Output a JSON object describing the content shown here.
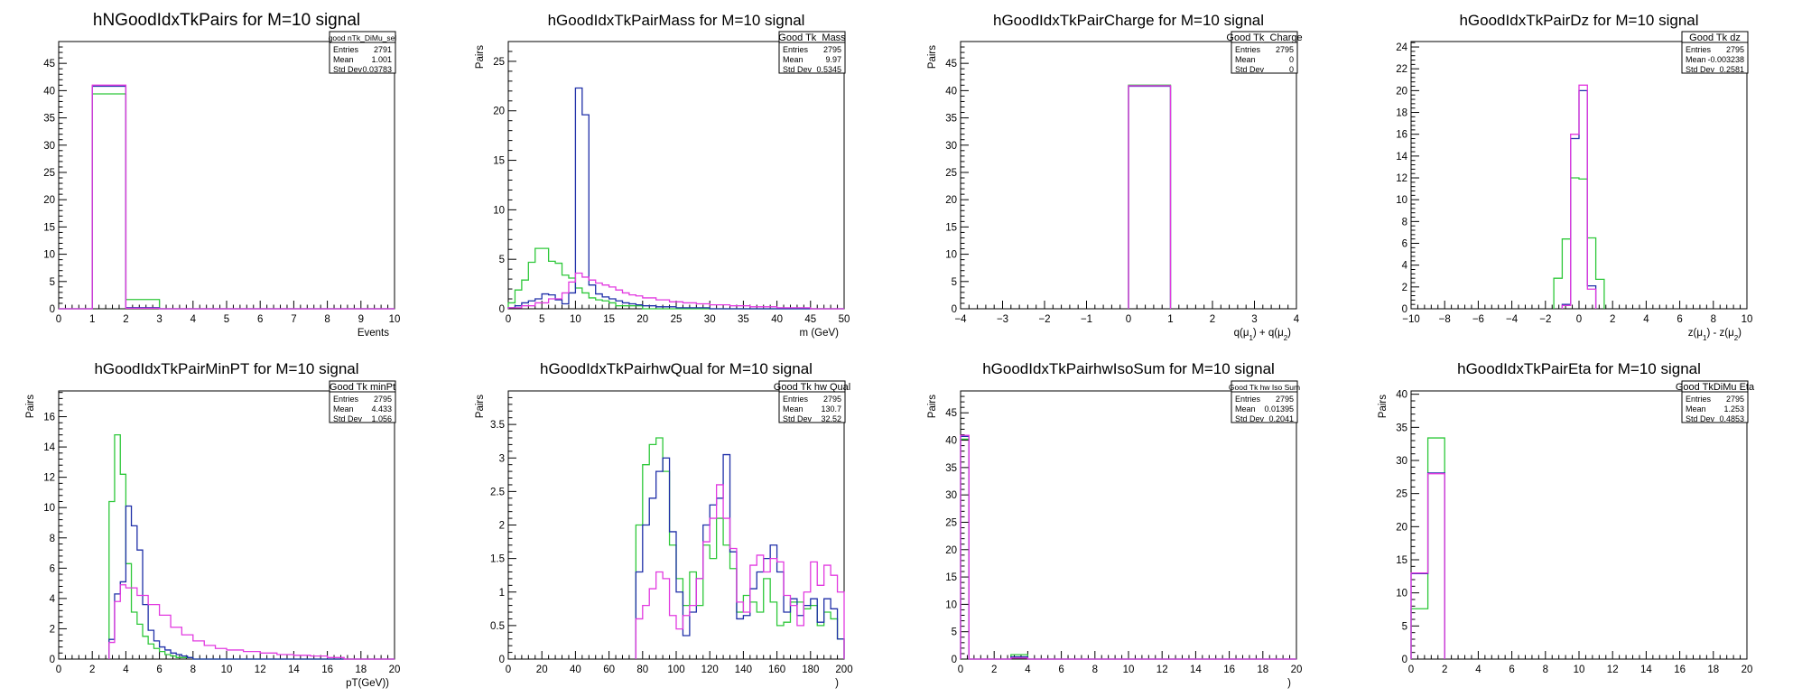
{
  "colors": {
    "blue": "#1f2fa8",
    "magenta": "#e23ae0",
    "green": "#2ec83a",
    "frame": "#000000"
  },
  "chart_data": [
    {
      "type": "histogram",
      "title": "hNGoodIdxTkPairs for M=10 signal",
      "xlabel": "Events",
      "ylabel": "",
      "xlim": [
        0,
        10
      ],
      "ylim": [
        0,
        49
      ],
      "xticks": [
        0,
        1,
        2,
        3,
        4,
        5,
        6,
        7,
        8,
        9,
        10
      ],
      "yticks": [
        0,
        5,
        10,
        15,
        20,
        25,
        30,
        35,
        40,
        45
      ],
      "stats": {
        "name": "good nTk_DiMu_sel",
        "rows": [
          [
            "Entries",
            "2791"
          ],
          [
            "Mean",
            "1.001"
          ],
          [
            "Std Dev",
            "0.03783"
          ]
        ]
      },
      "series": [
        {
          "color": "blue",
          "edges": [
            0,
            1,
            2,
            3,
            10
          ],
          "values": [
            0,
            40.8,
            0.2,
            0
          ]
        },
        {
          "color": "magenta",
          "edges": [
            0,
            1,
            2,
            3,
            10
          ],
          "values": [
            0,
            41,
            0.1,
            0
          ]
        },
        {
          "color": "green",
          "edges": [
            0,
            1,
            2,
            3,
            10
          ],
          "values": [
            0,
            39.4,
            1.7,
            0
          ]
        }
      ]
    },
    {
      "type": "histogram",
      "title": "hGoodIdxTkPairMass for M=10 signal",
      "xlabel": "m (GeV)",
      "ylabel": "Pairs",
      "xlim": [
        0,
        50
      ],
      "ylim": [
        0,
        27
      ],
      "xticks": [
        0,
        5,
        10,
        15,
        20,
        25,
        30,
        35,
        40,
        45,
        50
      ],
      "yticks": [
        0,
        5,
        10,
        15,
        20,
        25
      ],
      "stats": {
        "name": "Good Tk_Mass",
        "rows": [
          [
            "Entries",
            "2795"
          ],
          [
            "Mean",
            "9.97"
          ],
          [
            "Std Dev",
            "0.5345"
          ]
        ]
      },
      "series": [
        {
          "color": "blue",
          "edges": [
            0,
            1,
            2,
            3,
            4,
            5,
            6,
            7,
            8,
            9,
            10,
            11,
            12,
            13,
            14,
            15,
            16,
            17,
            18,
            19,
            20,
            22,
            25,
            30,
            50
          ],
          "values": [
            0.1,
            0.3,
            0.6,
            0.8,
            1,
            1.5,
            1.4,
            0.9,
            0.5,
            1.6,
            22.3,
            19.6,
            2.4,
            1.5,
            1.2,
            1,
            0.8,
            0.6,
            0.5,
            0.4,
            0.3,
            0.2,
            0.1,
            0
          ]
        },
        {
          "color": "magenta",
          "edges": [
            0,
            2,
            4,
            6,
            8,
            9,
            10,
            11,
            12,
            13,
            14,
            15,
            16,
            17,
            18,
            19,
            20,
            22,
            24,
            26,
            28,
            30,
            33,
            36,
            40,
            45,
            50
          ],
          "values": [
            0.1,
            0.3,
            0.6,
            1,
            1.6,
            2.7,
            3.6,
            3.2,
            2.9,
            2.6,
            2.4,
            2.2,
            1.9,
            1.6,
            1.4,
            1.3,
            1.1,
            0.9,
            0.7,
            0.6,
            0.5,
            0.4,
            0.3,
            0.2,
            0.1,
            0
          ]
        },
        {
          "color": "green",
          "edges": [
            0,
            1,
            2,
            3,
            4,
            5,
            6,
            7,
            8,
            9,
            10,
            11,
            12,
            13,
            14,
            15,
            16,
            20,
            50
          ],
          "values": [
            0.6,
            1.9,
            2.9,
            4.7,
            6.1,
            6.1,
            4.8,
            4.6,
            3.4,
            3.1,
            2.1,
            1.6,
            1.1,
            0.9,
            0.8,
            0.6,
            0.3,
            0
          ]
        }
      ]
    },
    {
      "type": "histogram",
      "title": "hGoodIdxTkPairCharge for M=10 signal",
      "xlabel": "q(μ₁) + q(μ₂)",
      "ylabel": "Pairs",
      "xlim": [
        -4,
        4
      ],
      "ylim": [
        0,
        49
      ],
      "xticks": [
        -4,
        -3,
        -2,
        -1,
        0,
        1,
        2,
        3,
        4
      ],
      "yticks": [
        0,
        5,
        10,
        15,
        20,
        25,
        30,
        35,
        40,
        45
      ],
      "stats": {
        "name": "Good Tk_Charge",
        "rows": [
          [
            "Entries",
            "2795"
          ],
          [
            "Mean",
            "0"
          ],
          [
            "Std Dev",
            "0"
          ]
        ]
      },
      "series": [
        {
          "color": "blue",
          "edges": [
            0,
            1
          ],
          "values": [
            40.8
          ]
        },
        {
          "color": "magenta",
          "edges": [
            0,
            1
          ],
          "values": [
            40.9
          ]
        },
        {
          "color": "green",
          "edges": [
            0,
            1
          ],
          "values": [
            41
          ]
        }
      ]
    },
    {
      "type": "histogram",
      "title": "hGoodIdxTkPairDz for M=10 signal",
      "xlabel": "z(μ₁) - z(μ₂)",
      "ylabel": "",
      "xlim": [
        -10,
        10
      ],
      "ylim": [
        0,
        24.5
      ],
      "xticks": [
        -10,
        -8,
        -6,
        -4,
        -2,
        0,
        2,
        4,
        6,
        8,
        10
      ],
      "yticks": [
        0,
        2,
        4,
        6,
        8,
        10,
        12,
        14,
        16,
        18,
        20,
        22,
        24
      ],
      "stats": {
        "name": "Good Tk dz",
        "rows": [
          [
            "Entries",
            "2795"
          ],
          [
            "Mean",
            "-0.003238"
          ],
          [
            "Std Dev",
            "0.2581"
          ]
        ]
      },
      "series": [
        {
          "color": "blue",
          "edges": [
            -1,
            -0.5,
            0,
            0.5,
            1
          ],
          "values": [
            0.4,
            15.6,
            20,
            2.1
          ]
        },
        {
          "color": "magenta",
          "edges": [
            -1,
            -0.5,
            0,
            0.5,
            1
          ],
          "values": [
            0.3,
            16,
            20.5,
            1.8
          ]
        },
        {
          "color": "green",
          "edges": [
            -1.5,
            -1,
            -0.5,
            0,
            0.5,
            1,
            1.5
          ],
          "values": [
            2.8,
            6.4,
            12,
            11.9,
            6.5,
            2.7
          ]
        }
      ]
    },
    {
      "type": "histogram",
      "title": "hGoodIdxTkPairMinPT for M=10 signal",
      "xlabel": "pT(GeV))",
      "ylabel": "Pairs",
      "xlim": [
        0,
        20
      ],
      "ylim": [
        0,
        17.7
      ],
      "xticks": [
        0,
        2,
        4,
        6,
        8,
        10,
        12,
        14,
        16,
        18,
        20
      ],
      "yticks": [
        0,
        2,
        4,
        6,
        8,
        10,
        12,
        14,
        16
      ],
      "stats": {
        "name": "Good Tk minPt",
        "rows": [
          [
            "Entries",
            "2795"
          ],
          [
            "Mean",
            "4.433"
          ],
          [
            "Std Dev",
            "1.056"
          ]
        ]
      },
      "series": [
        {
          "color": "blue",
          "edges": [
            3,
            3.33,
            3.67,
            4,
            4.33,
            4.67,
            5,
            5.33,
            5.67,
            6,
            6.33,
            6.67,
            7,
            7.33,
            7.67,
            8,
            20
          ],
          "values": [
            1.3,
            4.3,
            5.1,
            10.1,
            8.8,
            7.2,
            3.6,
            1.9,
            1.2,
            0.8,
            0.6,
            0.4,
            0.3,
            0.2,
            0.1,
            0
          ]
        },
        {
          "color": "magenta",
          "edges": [
            3,
            3.33,
            3.67,
            4,
            4.67,
            5.33,
            6,
            6.67,
            7.33,
            8,
            8.67,
            9.33,
            10,
            11,
            12,
            13,
            14,
            15,
            16,
            17,
            20
          ],
          "values": [
            1.1,
            3.8,
            4.9,
            4.7,
            4.2,
            3.6,
            2.9,
            2.1,
            1.6,
            1.2,
            0.9,
            0.7,
            0.6,
            0.5,
            0.4,
            0.3,
            0.25,
            0.2,
            0.1,
            0
          ]
        },
        {
          "color": "green",
          "edges": [
            3,
            3.33,
            3.67,
            4,
            4.33,
            4.67,
            5,
            5.33,
            5.67,
            6,
            6.33,
            6.67,
            7,
            8,
            20
          ],
          "values": [
            10.4,
            14.8,
            12.2,
            6.3,
            3.1,
            2.3,
            1.5,
            1,
            0.7,
            0.5,
            0.3,
            0.2,
            0.1,
            0
          ]
        }
      ]
    },
    {
      "type": "histogram",
      "title": "hGoodIdxTkPairhwQual for M=10 signal",
      "xlabel": ")",
      "ylabel": "Pairs",
      "xlim": [
        0,
        200
      ],
      "ylim": [
        0,
        4
      ],
      "xticks": [
        0,
        20,
        40,
        60,
        80,
        100,
        120,
        140,
        160,
        180,
        200
      ],
      "yticks": [
        0,
        0.5,
        1,
        1.5,
        2,
        2.5,
        3,
        3.5
      ],
      "stats": {
        "name": "Good Tk hw Qual",
        "rows": [
          [
            "Entries",
            "2795"
          ],
          [
            "Mean",
            "130.7"
          ],
          [
            "Std Dev",
            "32.52"
          ]
        ]
      },
      "series": [
        {
          "color": "blue",
          "edges": [
            76,
            80,
            84,
            88,
            92,
            96,
            100,
            104,
            108,
            112,
            116,
            120,
            124,
            128,
            132,
            136,
            140,
            144,
            148,
            152,
            156,
            160,
            164,
            168,
            172,
            176,
            180,
            184,
            188,
            192,
            196,
            200
          ],
          "values": [
            1.3,
            2,
            2.4,
            2.8,
            3,
            1.9,
            1,
            0.35,
            0.7,
            1.2,
            2,
            2.3,
            2.4,
            3.05,
            1.6,
            0.6,
            0.65,
            1.05,
            1.3,
            1.5,
            1.7,
            1.3,
            0.7,
            0.9,
            0.65,
            0.8,
            0.9,
            0.55,
            0.9,
            0.75,
            0.3
          ]
        },
        {
          "color": "magenta",
          "edges": [
            76,
            80,
            84,
            88,
            92,
            96,
            100,
            104,
            108,
            112,
            116,
            120,
            124,
            128,
            132,
            136,
            140,
            144,
            148,
            152,
            156,
            160,
            164,
            168,
            172,
            176,
            180,
            184,
            188,
            192,
            196,
            200
          ],
          "values": [
            0.6,
            0.8,
            1.05,
            1.3,
            1.2,
            0.65,
            0.45,
            0.65,
            0.8,
            1.2,
            1.75,
            2.1,
            2.6,
            2.1,
            1.65,
            0.85,
            0.7,
            1.4,
            1.55,
            1.3,
            1.5,
            1.45,
            0.95,
            0.8,
            0.5,
            1,
            1.45,
            1.1,
            1.4,
            1.25,
            1
          ]
        },
        {
          "color": "green",
          "edges": [
            76,
            80,
            84,
            88,
            92,
            96,
            100,
            104,
            108,
            112,
            116,
            120,
            124,
            128,
            132,
            136,
            140,
            144,
            148,
            152,
            156,
            160,
            164,
            168,
            172,
            176,
            180,
            184,
            188,
            192,
            196,
            200
          ],
          "values": [
            2,
            2.9,
            3.2,
            3.3,
            2.8,
            1.7,
            1.2,
            0.8,
            1.3,
            0.8,
            1.7,
            1.5,
            2.1,
            1.7,
            1.35,
            0.7,
            0.95,
            0.85,
            0.7,
            1.2,
            0.85,
            0.5,
            0.55,
            0.85,
            0.85,
            0.75,
            0.8,
            0.5,
            0.7,
            0.6,
            0.3
          ]
        }
      ]
    },
    {
      "type": "histogram",
      "title": "hGoodIdxTkPairhwIsoSum for M=10 signal",
      "xlabel": ")",
      "ylabel": "Pairs",
      "xlim": [
        0,
        20
      ],
      "ylim": [
        0,
        49
      ],
      "xticks": [
        0,
        2,
        4,
        6,
        8,
        10,
        12,
        14,
        16,
        18,
        20
      ],
      "yticks": [
        0,
        5,
        10,
        15,
        20,
        25,
        30,
        35,
        40,
        45
      ],
      "stats": {
        "name": "Good Tk hw Iso Sum",
        "rows": [
          [
            "Entries",
            "2795"
          ],
          [
            "Mean",
            "0.01395"
          ],
          [
            "Std Dev",
            "0.2041"
          ]
        ]
      },
      "series": [
        {
          "color": "blue",
          "edges": [
            0,
            0.5,
            3,
            4,
            20
          ],
          "values": [
            40.7,
            0,
            0.4,
            0
          ]
        },
        {
          "color": "magenta",
          "edges": [
            0,
            0.5,
            3,
            4,
            20
          ],
          "values": [
            40.9,
            0,
            0.2,
            0
          ]
        },
        {
          "color": "green",
          "edges": [
            0,
            0.5,
            3,
            4,
            20
          ],
          "values": [
            40.2,
            0,
            0.8,
            0
          ]
        }
      ]
    },
    {
      "type": "histogram",
      "title": "hGoodIdxTkPairEta for M=10 signal",
      "xlabel": "",
      "ylabel": "Pairs",
      "xlim": [
        0,
        20
      ],
      "ylim": [
        0,
        40.5
      ],
      "xticks": [
        0,
        2,
        4,
        6,
        8,
        10,
        12,
        14,
        16,
        18,
        20
      ],
      "yticks": [
        0,
        5,
        10,
        15,
        20,
        25,
        30,
        35,
        40
      ],
      "stats": {
        "name": "Good TkDiMu Eta",
        "rows": [
          [
            "Entries",
            "2795"
          ],
          [
            "Mean",
            "1.253"
          ],
          [
            "Std Dev",
            "0.4853"
          ]
        ]
      },
      "series": [
        {
          "color": "blue",
          "edges": [
            0,
            1,
            2
          ],
          "values": [
            12.9,
            28.1
          ]
        },
        {
          "color": "magenta",
          "edges": [
            0,
            1,
            2
          ],
          "values": [
            13,
            28
          ]
        },
        {
          "color": "green",
          "edges": [
            0,
            1,
            2
          ],
          "values": [
            7.6,
            33.4
          ]
        }
      ]
    }
  ]
}
